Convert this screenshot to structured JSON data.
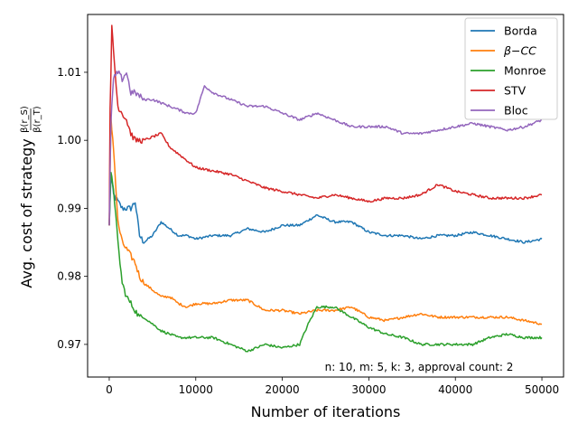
{
  "chart_data": {
    "type": "line",
    "xlabel": "Number of iterations",
    "ylabel": "Avg. cost of strategy",
    "ylabel_fraction": {
      "numerator": "β(r_S)",
      "denominator": "β(r_T)"
    },
    "xlim": [
      -2500,
      52500
    ],
    "ylim": [
      0.9652,
      1.0185
    ],
    "x_ticks": [
      0,
      10000,
      20000,
      30000,
      40000,
      50000
    ],
    "x_tick_labels": [
      "0",
      "10000",
      "20000",
      "30000",
      "40000",
      "50000"
    ],
    "y_ticks": [
      0.97,
      0.98,
      0.99,
      1.0,
      1.01
    ],
    "y_tick_labels": [
      "0.97",
      "0.98",
      "0.99",
      "1.00",
      "1.01"
    ],
    "grid": false,
    "legend_position": "top-right",
    "annotation": "n: 10, m: 5, k: 3, approval count: 2",
    "series": [
      {
        "name": "Borda",
        "color": "#1f77b4",
        "x": [
          0,
          200,
          500,
          1000,
          1500,
          2000,
          2500,
          3000,
          3500,
          4000,
          5000,
          6000,
          7000,
          8000,
          9000,
          10000,
          12000,
          14000,
          16000,
          18000,
          20000,
          22000,
          24000,
          26000,
          28000,
          30000,
          32000,
          34000,
          36000,
          38000,
          40000,
          42000,
          44000,
          46000,
          48000,
          50000
        ],
        "values": [
          0.9875,
          0.995,
          0.992,
          0.991,
          0.99,
          0.99,
          0.99,
          0.991,
          0.986,
          0.985,
          0.986,
          0.988,
          0.987,
          0.986,
          0.986,
          0.9855,
          0.986,
          0.986,
          0.987,
          0.9865,
          0.9875,
          0.9875,
          0.989,
          0.988,
          0.988,
          0.9865,
          0.986,
          0.986,
          0.9855,
          0.986,
          0.986,
          0.9865,
          0.986,
          0.9855,
          0.985,
          0.9855
        ]
      },
      {
        "name": "β−CC",
        "color": "#ff7f0e",
        "x": [
          0,
          200,
          500,
          1000,
          1500,
          2000,
          2500,
          3000,
          3500,
          4000,
          5000,
          6000,
          7000,
          8000,
          9000,
          10000,
          12000,
          14000,
          16000,
          18000,
          20000,
          22000,
          24000,
          26000,
          28000,
          30000,
          32000,
          34000,
          36000,
          38000,
          40000,
          42000,
          44000,
          46000,
          48000,
          50000
        ],
        "values": [
          0.9875,
          1.003,
          0.999,
          0.988,
          0.985,
          0.984,
          0.983,
          0.982,
          0.98,
          0.979,
          0.978,
          0.977,
          0.977,
          0.976,
          0.9755,
          0.976,
          0.976,
          0.9765,
          0.9765,
          0.975,
          0.975,
          0.9745,
          0.975,
          0.975,
          0.9755,
          0.974,
          0.9735,
          0.974,
          0.9745,
          0.974,
          0.974,
          0.974,
          0.974,
          0.974,
          0.9735,
          0.973
        ]
      },
      {
        "name": "Monroe",
        "color": "#2ca02c",
        "x": [
          0,
          200,
          500,
          1000,
          1500,
          2000,
          2500,
          3000,
          3500,
          4000,
          5000,
          6000,
          7000,
          8000,
          9000,
          10000,
          12000,
          14000,
          16000,
          18000,
          20000,
          22000,
          23000,
          24000,
          26000,
          28000,
          30000,
          32000,
          34000,
          36000,
          38000,
          40000,
          42000,
          44000,
          46000,
          48000,
          50000
        ],
        "values": [
          0.9875,
          0.995,
          0.993,
          0.985,
          0.979,
          0.977,
          0.976,
          0.975,
          0.974,
          0.974,
          0.973,
          0.972,
          0.9715,
          0.971,
          0.971,
          0.971,
          0.971,
          0.97,
          0.969,
          0.97,
          0.9695,
          0.97,
          0.973,
          0.9755,
          0.9755,
          0.974,
          0.9725,
          0.9715,
          0.971,
          0.97,
          0.97,
          0.97,
          0.97,
          0.971,
          0.9715,
          0.971,
          0.971
        ]
      },
      {
        "name": "STV",
        "color": "#d62728",
        "x": [
          0,
          100,
          300,
          500,
          800,
          1000,
          1500,
          2000,
          2500,
          3000,
          4000,
          5000,
          6000,
          7000,
          8000,
          9000,
          10000,
          12000,
          14000,
          16000,
          18000,
          20000,
          22000,
          24000,
          26000,
          28000,
          30000,
          32000,
          34000,
          36000,
          38000,
          40000,
          42000,
          44000,
          46000,
          48000,
          50000
        ],
        "values": [
          0.9875,
          1.005,
          1.0165,
          1.013,
          1.008,
          1.005,
          1.004,
          1.003,
          1.001,
          1.0,
          1.0,
          1.0005,
          1.001,
          0.999,
          0.998,
          0.997,
          0.996,
          0.9955,
          0.995,
          0.994,
          0.993,
          0.9925,
          0.992,
          0.9915,
          0.992,
          0.9915,
          0.991,
          0.9915,
          0.9915,
          0.992,
          0.9935,
          0.9925,
          0.992,
          0.9915,
          0.9915,
          0.9915,
          0.992
        ]
      },
      {
        "name": "Bloc",
        "color": "#9467bd",
        "x": [
          0,
          200,
          500,
          1000,
          1500,
          2000,
          2500,
          3000,
          4000,
          5000,
          6000,
          7000,
          8000,
          9000,
          10000,
          11000,
          12000,
          14000,
          16000,
          18000,
          20000,
          22000,
          24000,
          26000,
          28000,
          30000,
          32000,
          34000,
          36000,
          38000,
          40000,
          42000,
          44000,
          46000,
          48000,
          50000
        ],
        "values": [
          0.9875,
          1.003,
          1.009,
          1.01,
          1.009,
          1.01,
          1.007,
          1.007,
          1.006,
          1.006,
          1.0055,
          1.005,
          1.0045,
          1.004,
          1.004,
          1.008,
          1.007,
          1.006,
          1.005,
          1.005,
          1.004,
          1.003,
          1.004,
          1.003,
          1.002,
          1.002,
          1.002,
          1.001,
          1.001,
          1.0015,
          1.002,
          1.0025,
          1.002,
          1.0015,
          1.002,
          1.003
        ]
      }
    ]
  }
}
